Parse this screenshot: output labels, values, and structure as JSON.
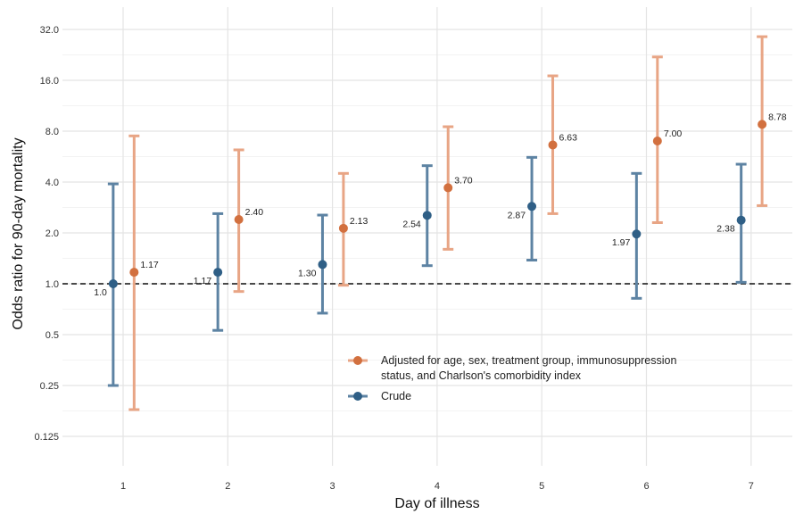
{
  "chart_data": {
    "type": "scatter",
    "title": "",
    "xlabel": "Day of illness",
    "ylabel": "Odds ratio for 90-day mortality",
    "y_scale": "log2",
    "ylim": [
      0.125,
      32
    ],
    "xlim": [
      0.2,
      7.5
    ],
    "categories": [
      "1",
      "2",
      "3",
      "4",
      "5",
      "6",
      "7"
    ],
    "y_ticks": [
      0.125,
      0.25,
      0.5,
      1.0,
      2.0,
      4.0,
      8.0,
      16.0,
      32.0
    ],
    "y_tick_labels": [
      "0.125",
      "0.25",
      "0.5",
      "1.0",
      "2.0",
      "4.0",
      "8.0",
      "16.0",
      "32.0"
    ],
    "reference_line": {
      "y": 1.0,
      "style": "dashed"
    },
    "grid": true,
    "legend_position": "bottom-right",
    "series": [
      {
        "name": "Adjusted for age, sex, treatment group, immunosuppression status, and Charlson's comorbidity index",
        "legend_lines": [
          "Adjusted for age, sex, treatment group, immunosuppression",
          "status, and Charlson's comorbidity index"
        ],
        "color": "#d2703f",
        "errbar_color": "#e8a585",
        "x": [
          1,
          2,
          3,
          4,
          5,
          6,
          7
        ],
        "values": [
          1.17,
          2.4,
          2.13,
          3.7,
          6.63,
          7.0,
          8.78
        ],
        "labels": [
          "1.17",
          "2.40",
          "2.13",
          "3.70",
          "6.63",
          "7.00",
          "8.78"
        ],
        "ci_low": [
          0.18,
          0.9,
          0.98,
          1.6,
          2.6,
          2.3,
          2.9
        ],
        "ci_high": [
          7.5,
          6.2,
          4.5,
          8.5,
          17.0,
          22.0,
          29.0
        ]
      },
      {
        "name": "Crude",
        "legend_lines": [
          "Crude"
        ],
        "color": "#2f5f86",
        "errbar_color": "#5d83a3",
        "x": [
          1,
          2,
          3,
          4,
          5,
          6,
          7
        ],
        "values": [
          1.0,
          1.17,
          1.3,
          2.54,
          2.87,
          1.97,
          2.38
        ],
        "labels": [
          "1.0",
          "1.17",
          "1.30",
          "2.54",
          "2.87",
          "1.97",
          "2.38"
        ],
        "ci_low": [
          0.25,
          0.53,
          0.67,
          1.28,
          1.38,
          0.82,
          1.02
        ],
        "ci_high": [
          3.9,
          2.6,
          2.55,
          5.0,
          5.6,
          4.5,
          5.1
        ]
      }
    ]
  }
}
